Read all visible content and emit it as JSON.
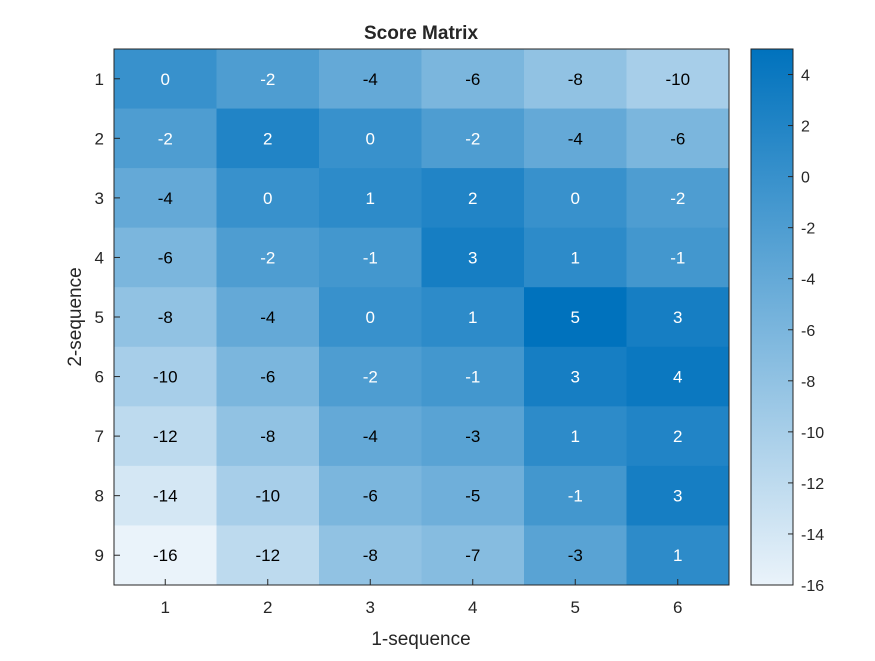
{
  "chart_data": {
    "type": "heatmap",
    "title": "Score Matrix",
    "xlabel": "1-sequence",
    "ylabel": "2-sequence",
    "x_categories": [
      "1",
      "2",
      "3",
      "4",
      "5",
      "6"
    ],
    "y_categories": [
      "1",
      "2",
      "3",
      "4",
      "5",
      "6",
      "7",
      "8",
      "9"
    ],
    "values": [
      [
        0,
        -2,
        -4,
        -6,
        -8,
        -10
      ],
      [
        -2,
        2,
        0,
        -2,
        -4,
        -6
      ],
      [
        -4,
        0,
        1,
        2,
        0,
        -2
      ],
      [
        -6,
        -2,
        -1,
        3,
        1,
        -1
      ],
      [
        -8,
        -4,
        0,
        1,
        5,
        3
      ],
      [
        -10,
        -6,
        -2,
        -1,
        3,
        4
      ],
      [
        -12,
        -8,
        -4,
        -3,
        1,
        2
      ],
      [
        -14,
        -10,
        -6,
        -5,
        -1,
        3
      ],
      [
        -16,
        -12,
        -8,
        -7,
        -3,
        1
      ]
    ],
    "colorbar": {
      "limits": [
        -16,
        5
      ],
      "ticks": [
        4,
        2,
        0,
        -2,
        -4,
        -6,
        -8,
        -10,
        -12,
        -14,
        -16
      ],
      "color_low": "#eaf3fa",
      "color_high": "#0072bd"
    },
    "cell_label_color_dark": "#000000",
    "cell_label_color_light": "#ffffff"
  }
}
